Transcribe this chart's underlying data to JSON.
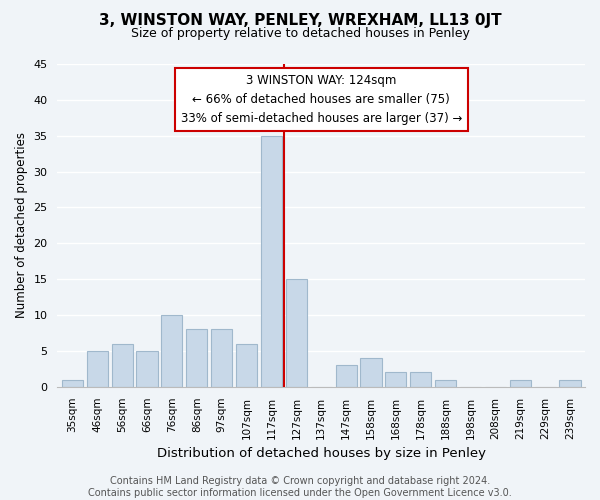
{
  "title": "3, WINSTON WAY, PENLEY, WREXHAM, LL13 0JT",
  "subtitle": "Size of property relative to detached houses in Penley",
  "xlabel": "Distribution of detached houses by size in Penley",
  "ylabel": "Number of detached properties",
  "bar_labels": [
    "35sqm",
    "46sqm",
    "56sqm",
    "66sqm",
    "76sqm",
    "86sqm",
    "97sqm",
    "107sqm",
    "117sqm",
    "127sqm",
    "137sqm",
    "147sqm",
    "158sqm",
    "168sqm",
    "178sqm",
    "188sqm",
    "198sqm",
    "208sqm",
    "219sqm",
    "229sqm",
    "239sqm"
  ],
  "bar_values": [
    1,
    5,
    6,
    5,
    10,
    8,
    8,
    6,
    35,
    15,
    0,
    3,
    4,
    2,
    2,
    1,
    0,
    0,
    1,
    0,
    1
  ],
  "bar_color": "#c8d8e8",
  "bar_edgecolor": "#a0b8cc",
  "vline_x": 8.5,
  "vline_color": "#cc0000",
  "annotation_line1": "3 WINSTON WAY: 124sqm",
  "annotation_line2": "← 66% of detached houses are smaller (75)",
  "annotation_line3": "33% of semi-detached houses are larger (37) →",
  "annotation_box_edgecolor": "#cc0000",
  "annotation_fontsize": 8.5,
  "ylim": [
    0,
    45
  ],
  "yticks": [
    0,
    5,
    10,
    15,
    20,
    25,
    30,
    35,
    40,
    45
  ],
  "footer_text": "Contains HM Land Registry data © Crown copyright and database right 2024.\nContains public sector information licensed under the Open Government Licence v3.0.",
  "background_color": "#f0f4f8",
  "plot_background_color": "#f0f4f8",
  "title_fontsize": 11,
  "subtitle_fontsize": 9,
  "xlabel_fontsize": 9.5,
  "ylabel_fontsize": 8.5,
  "footer_fontsize": 7
}
